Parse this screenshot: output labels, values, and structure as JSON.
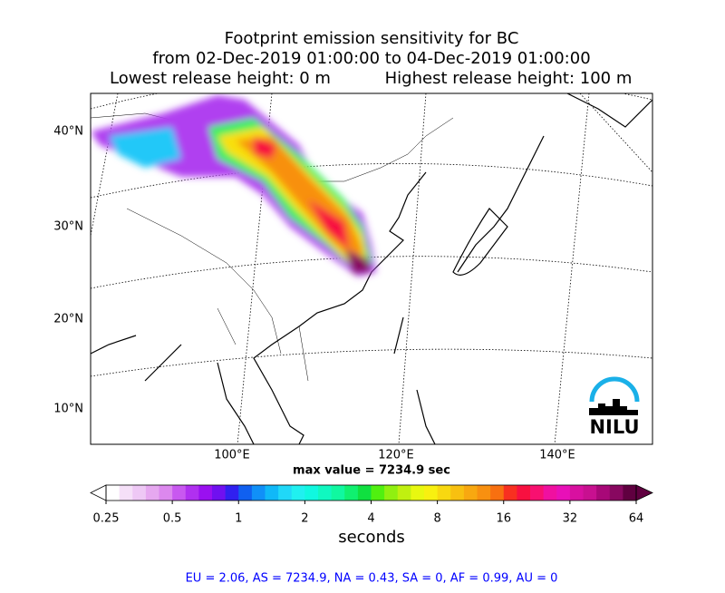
{
  "chart_data": {
    "type": "footprint-map",
    "title_lines": [
      "Footprint emission sensitivity for BC",
      "from 02-Dec-2019 01:00:00 to 04-Dec-2019 01:00:00"
    ],
    "release_heights": [
      "Lowest release height: 0 m",
      "Highest release height: 100 m"
    ],
    "lat_labels": [
      "40°N",
      "30°N",
      "20°N",
      "10°N"
    ],
    "lon_labels": [
      "100°E",
      "120°E",
      "140°E"
    ],
    "max_value_text": "max value = 7234.9 sec",
    "logo": "NILU",
    "colorbar": {
      "label": "seconds",
      "scale": "log",
      "lim": [
        0.25,
        64
      ],
      "ticks": [
        0.25,
        0.5,
        1,
        2,
        4,
        8,
        16,
        32,
        64
      ],
      "under_color": "#ffffff",
      "over_color": "#600040",
      "colors": [
        "#ffffff",
        "#f5e0f8",
        "#eec8f5",
        "#e6a8f0",
        "#dc88ee",
        "#c858f0",
        "#b030f0",
        "#9a10f0",
        "#7010f0",
        "#3020f0",
        "#1060f0",
        "#1090f8",
        "#10b8f8",
        "#20d8f8",
        "#20f0f0",
        "#10f8e0",
        "#10f8c0",
        "#10f8a0",
        "#10f070",
        "#10e040",
        "#50f010",
        "#90f010",
        "#c0f010",
        "#e8f810",
        "#f8f010",
        "#f8d810",
        "#f8c010",
        "#f8a810",
        "#f89010",
        "#f87010",
        "#f83020",
        "#f81040",
        "#f81070",
        "#f010a0",
        "#e810b8",
        "#d810a0",
        "#c81090",
        "#a80878",
        "#880860",
        "#600040"
      ]
    },
    "footer": "EU = 2.06,  AS = 7234.9,  NA = 0.43,  SA = 0,  AF = 0.99,  AU = 0"
  }
}
